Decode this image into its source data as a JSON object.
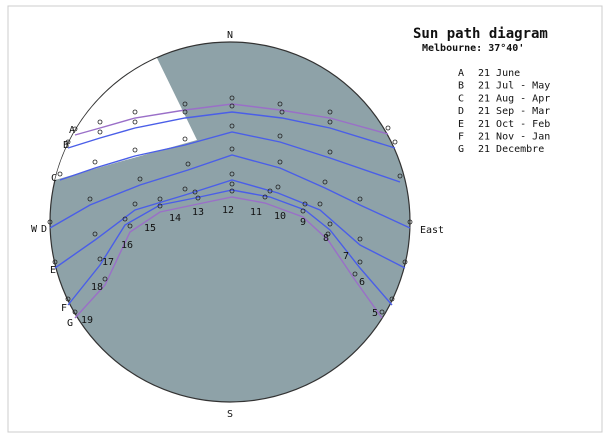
{
  "title": "Sun path diagram",
  "subtitle": "Melbourne: 37°40'",
  "directions": {
    "north": "N",
    "south": "S",
    "east": "East",
    "west": "W"
  },
  "curves": [
    {
      "letter": "A",
      "label": "21 June"
    },
    {
      "letter": "B",
      "label": "21 Jul - May"
    },
    {
      "letter": "C",
      "label": "21 Aug - Apr"
    },
    {
      "letter": "D",
      "label": "21 Sep - Mar"
    },
    {
      "letter": "E",
      "label": "21 Oct - Feb"
    },
    {
      "letter": "F",
      "label": "21 Nov - Jan"
    },
    {
      "letter": "G",
      "label": "21 Decembre"
    }
  ],
  "hours": [
    "19",
    "18",
    "17",
    "16",
    "15",
    "14",
    "13",
    "12",
    "11",
    "10",
    "9",
    "8",
    "7",
    "6",
    "5"
  ]
}
